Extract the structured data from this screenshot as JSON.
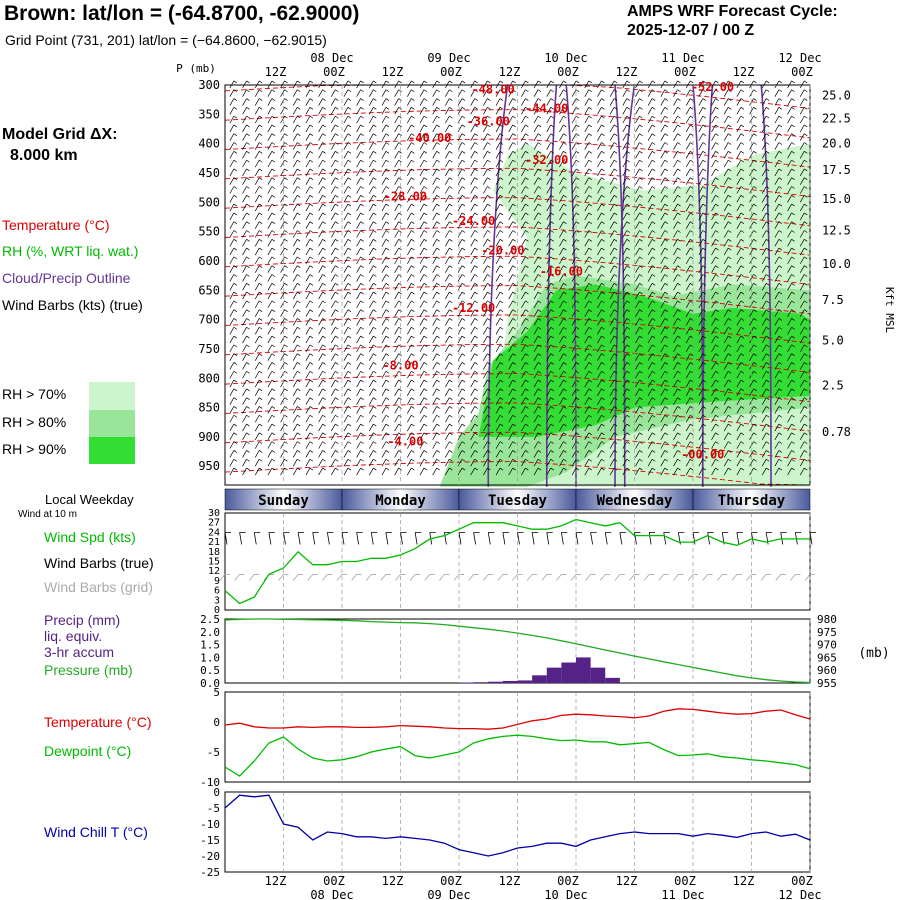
{
  "header": {
    "title": "Brown:  lat/lon = (-64.8700, -62.9000)",
    "subtitle": "Grid Point (731, 201) lat/lon = (−64.8600, −62.9015)",
    "cycle_line1": "AMPS WRF Forecast Cycle:",
    "cycle_line2": "2025-12-07 / 00  Z",
    "grid_line1": "Model Grid ΔX:",
    "grid_line2": "8.000 km"
  },
  "legend": {
    "temperature": "Temperature (°C)",
    "rh": "RH (%, WRT liq. wat.)",
    "cloud": "Cloud/Precip Outline",
    "wind_barbs": "Wind Barbs (kts) (true)",
    "rh70": "RH > 70%",
    "rh80": "RH > 80%",
    "rh90": "RH > 90%",
    "local_weekday": "Local Weekday",
    "wind_at": "Wind at 10 m",
    "wind_spd": "Wind Spd (kts)",
    "wind_barbs_true": "Wind Barbs (true)",
    "wind_barbs_grid": "Wind Barbs (grid)",
    "precip1": "Precip (mm)",
    "precip2": "liq. equiv.",
    "precip3": "3-hr accum",
    "pressure": "Pressure (mb)",
    "temp2": "Temperature (°C)",
    "dewpoint": "Dewpoint (°C)",
    "windchill": "Wind Chill T (°C)"
  },
  "colors": {
    "temp": "#dd0000",
    "rh": "#00bb00",
    "cloud": "#663399",
    "pressure": "#22aa22",
    "precip": "#552288",
    "windchill": "#0000aa",
    "rh70": "#ccf5cc",
    "rh80": "#99e599",
    "rh90": "#33dd33",
    "day_bar": "#4a5a9c",
    "grid_barbs": "#aaaaaa"
  },
  "chart_data": [
    {
      "type": "heatmap",
      "title": "Vertical cross-section",
      "ylabel": "P (mb)",
      "ylabel_right": "Kft MSL",
      "y_ticks": [
        "300",
        "350",
        "400",
        "450",
        "500",
        "550",
        "600",
        "650",
        "700",
        "750",
        "800",
        "850",
        "900",
        "950"
      ],
      "y_right_ticks": [
        "25.0",
        "22.5",
        "20.0",
        "17.5",
        "15.0",
        "12.5",
        "10.0",
        "7.5",
        "5.0",
        "2.5",
        "0.78"
      ],
      "y_right_p": [
        318,
        357,
        400,
        445,
        494,
        548,
        605,
        667,
        736,
        812,
        892,
        982
      ],
      "x_ticks_top": [
        "12Z",
        "00Z",
        "12Z",
        "00Z",
        "12Z",
        "00Z",
        "12Z",
        "00Z",
        "12Z",
        "00Z"
      ],
      "x_tick_hours": [
        12,
        24,
        36,
        48,
        60,
        72,
        84,
        96,
        108,
        120
      ],
      "dates": [
        "08 Dec",
        "09 Dec",
        "10 Dec",
        "11 Dec",
        "12 Dec"
      ],
      "date_hours": [
        24,
        48,
        72,
        96,
        120
      ],
      "isotherm_labels": [
        {
          "text": "-48.00",
          "h": 55,
          "p": 308
        },
        {
          "text": "-44.00",
          "h": 66,
          "p": 340
        },
        {
          "text": "-52.00",
          "h": 100,
          "p": 303
        },
        {
          "text": "-40.00",
          "h": 42,
          "p": 390
        },
        {
          "text": "-36.00",
          "h": 54,
          "p": 362
        },
        {
          "text": "-32.00",
          "h": 66,
          "p": 428
        },
        {
          "text": "-28.00",
          "h": 37,
          "p": 490
        },
        {
          "text": "-24.00",
          "h": 51,
          "p": 532
        },
        {
          "text": "-20.00",
          "h": 57,
          "p": 582
        },
        {
          "text": "-16.00",
          "h": 69,
          "p": 618
        },
        {
          "text": "-12.00",
          "h": 51,
          "p": 680
        },
        {
          "text": "-8.00",
          "h": 36,
          "p": 778
        },
        {
          "text": "-4.00",
          "h": 37,
          "p": 908
        },
        {
          "text": "-00.00",
          "h": 98,
          "p": 930
        }
      ]
    },
    {
      "type": "line",
      "title": "Wind Speed 10 m",
      "ylabel": "kts",
      "y_ticks": [
        "30",
        "27",
        "24",
        "21",
        "18",
        "15",
        "12",
        "9",
        "6",
        "3",
        "0"
      ],
      "ylim": [
        0,
        30
      ],
      "day_labels": [
        "Sunday",
        "Monday",
        "Tuesday",
        "Wednesday",
        "Thursday"
      ],
      "day_starts": [
        0,
        24,
        48,
        72,
        96
      ],
      "x": [
        0,
        3,
        6,
        9,
        12,
        15,
        18,
        21,
        24,
        27,
        30,
        33,
        36,
        39,
        42,
        45,
        48,
        51,
        54,
        57,
        60,
        63,
        66,
        69,
        72,
        75,
        78,
        81,
        84,
        87,
        90,
        93,
        96,
        99,
        102,
        105,
        108,
        111,
        114,
        117,
        120
      ],
      "series": [
        {
          "name": "Wind Spd",
          "values": [
            6,
            2,
            4,
            11,
            13,
            18,
            14,
            14,
            15,
            15,
            16,
            16,
            17,
            19,
            22,
            23,
            25,
            27,
            27,
            27,
            26,
            25,
            25,
            26,
            28,
            27,
            26,
            27,
            23,
            23,
            23,
            21,
            21,
            23,
            21,
            20,
            22,
            21,
            22,
            22,
            22
          ]
        }
      ]
    },
    {
      "type": "bar",
      "title": "Precip and Pressure",
      "y_ticks_left": [
        "2.5",
        "2.0",
        "1.5",
        "1.0",
        "0.5",
        "0.0"
      ],
      "y_ticks_right": [
        "980",
        "975",
        "970",
        "965",
        "960",
        "955"
      ],
      "y_right_unit": "(mb)",
      "ylim": [
        0,
        2.5
      ],
      "pressure_ylim": [
        955,
        980
      ],
      "x": [
        0,
        3,
        6,
        9,
        12,
        15,
        18,
        21,
        24,
        27,
        30,
        33,
        36,
        39,
        42,
        45,
        48,
        51,
        54,
        57,
        60,
        63,
        66,
        69,
        72,
        75,
        78,
        81,
        84,
        87,
        90,
        93,
        96,
        99,
        102,
        105,
        108,
        111,
        114,
        117,
        120
      ],
      "series": [
        {
          "name": "Pressure",
          "values": [
            979.6,
            979.9,
            980,
            980,
            979.9,
            979.8,
            979.7,
            979.6,
            979.5,
            979.3,
            979,
            978.8,
            978.6,
            978.5,
            978.2,
            977.8,
            977.2,
            976.6,
            976,
            975.3,
            974.5,
            973.6,
            972.6,
            971.5,
            970.3,
            969.1,
            967.9,
            966.7,
            965.5,
            964.4,
            963.3,
            962.2,
            961.1,
            960,
            958.9,
            957.8,
            957,
            956.3,
            955.8,
            955.4,
            955.2
          ]
        },
        {
          "name": "Precip",
          "x": [
            49.5,
            52.5,
            55.5,
            58.5,
            61.5,
            64.5,
            67.5,
            70.5,
            73.5,
            76.5,
            79.5
          ],
          "values": [
            0.02,
            0.03,
            0.05,
            0.08,
            0.1,
            0.3,
            0.6,
            0.8,
            1.0,
            0.6,
            0.2
          ]
        }
      ]
    },
    {
      "type": "line",
      "title": "Temperature and Dewpoint",
      "y_ticks": [
        "5",
        "0",
        "-5",
        "-10"
      ],
      "ylim": [
        -10,
        5
      ],
      "x": [
        0,
        3,
        6,
        9,
        12,
        15,
        18,
        21,
        24,
        27,
        30,
        33,
        36,
        39,
        42,
        45,
        48,
        51,
        54,
        57,
        60,
        63,
        66,
        69,
        72,
        75,
        78,
        81,
        84,
        87,
        90,
        93,
        96,
        99,
        102,
        105,
        108,
        111,
        114,
        117,
        120
      ],
      "series": [
        {
          "name": "Temperature",
          "values": [
            -0.5,
            -0.2,
            -0.8,
            -1,
            -1,
            -0.8,
            -0.9,
            -0.8,
            -0.8,
            -0.9,
            -0.9,
            -0.8,
            -0.6,
            -0.7,
            -0.8,
            -1,
            -1.1,
            -1.1,
            -1.2,
            -1,
            -0.4,
            0.2,
            0.5,
            1.1,
            1.3,
            1.2,
            1.0,
            0.9,
            0.7,
            1.0,
            1.8,
            2.2,
            2.1,
            1.8,
            1.5,
            1.3,
            1.4,
            1.8,
            2.0,
            1.2,
            0.5
          ]
        },
        {
          "name": "Dewpoint",
          "values": [
            -7.5,
            -9,
            -6.5,
            -3.5,
            -2.5,
            -4.5,
            -6,
            -6.5,
            -6.3,
            -5.8,
            -5,
            -4.5,
            -4.1,
            -5.6,
            -6,
            -5.5,
            -5,
            -3.5,
            -2.8,
            -2.4,
            -2.2,
            -2.4,
            -2.8,
            -3.1,
            -3,
            -3.3,
            -3.3,
            -3.8,
            -3.6,
            -3.4,
            -4.6,
            -5.6,
            -5.5,
            -5.3,
            -5.8,
            -6,
            -6.3,
            -6.5,
            -6.8,
            -7.1,
            -7.8
          ]
        }
      ]
    },
    {
      "type": "line",
      "title": "Wind Chill",
      "y_ticks": [
        "0",
        "-5",
        "-10",
        "-15",
        "-20",
        "-25"
      ],
      "ylim": [
        -25,
        0
      ],
      "x_ticks": [
        "12Z",
        "00Z",
        "12Z",
        "00Z",
        "12Z",
        "00Z",
        "12Z",
        "00Z",
        "12Z",
        "00Z"
      ],
      "x_tick_hours": [
        12,
        24,
        36,
        48,
        60,
        72,
        84,
        96,
        108,
        120
      ],
      "dates": [
        "08 Dec",
        "09 Dec",
        "10 Dec",
        "11 Dec",
        "12 Dec"
      ],
      "date_hours": [
        24,
        48,
        72,
        96,
        120
      ],
      "x": [
        0,
        3,
        6,
        9,
        12,
        15,
        18,
        21,
        24,
        27,
        30,
        33,
        36,
        39,
        42,
        45,
        48,
        51,
        54,
        57,
        60,
        63,
        66,
        69,
        72,
        75,
        78,
        81,
        84,
        87,
        90,
        93,
        96,
        99,
        102,
        105,
        108,
        111,
        114,
        117,
        120
      ],
      "series": [
        {
          "name": "Wind Chill",
          "values": [
            -5,
            -1,
            -1.5,
            -1,
            -10,
            -11,
            -15,
            -12.5,
            -13,
            -14,
            -14,
            -14.5,
            -14,
            -14.5,
            -15,
            -16,
            -18,
            -19,
            -20,
            -19,
            -17.5,
            -17,
            -16,
            -16,
            -17,
            -15,
            -14,
            -13,
            -12.5,
            -13,
            -13,
            -13,
            -13.8,
            -13,
            -13.5,
            -14.2,
            -13,
            -12.5,
            -13.8,
            -13.2,
            -15
          ]
        }
      ]
    }
  ]
}
